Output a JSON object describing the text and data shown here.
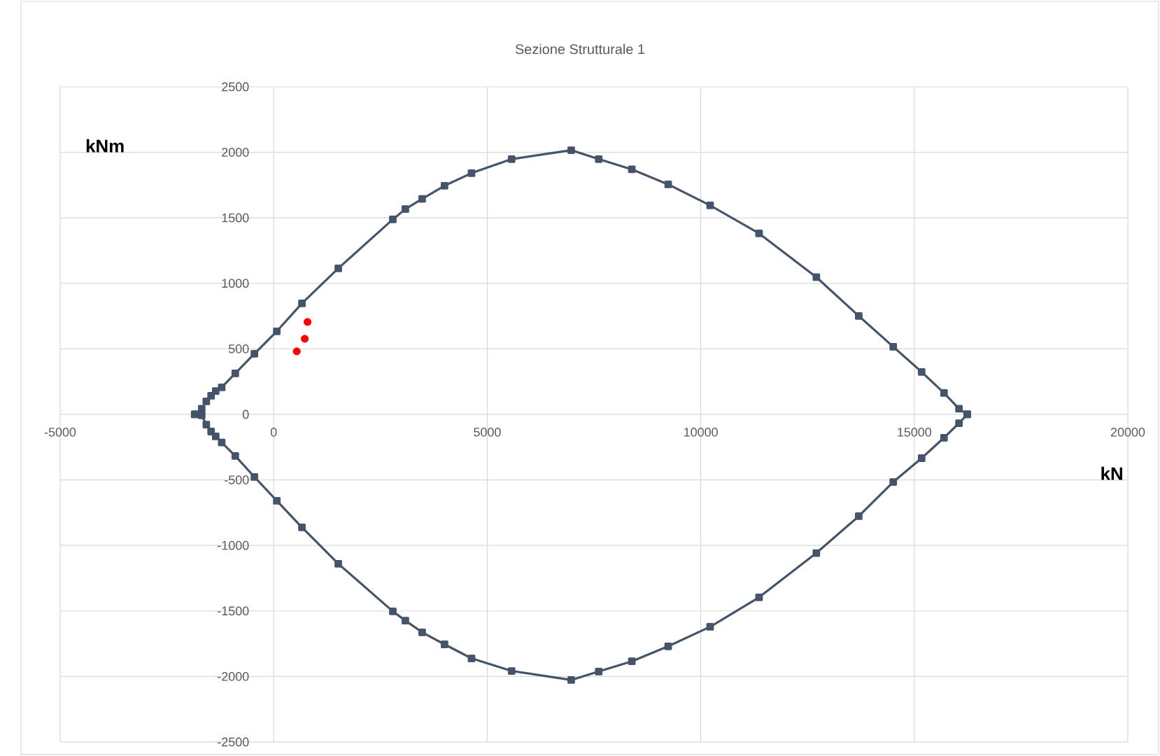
{
  "chart_data": {
    "type": "line",
    "title": "Sezione Strutturale 1",
    "xlabel": "kN",
    "ylabel": "kNm",
    "xlim": [
      -5000,
      20000
    ],
    "xticks": [
      -5000,
      0,
      5000,
      10000,
      15000,
      20000
    ],
    "ylim": [
      -2500,
      2500
    ],
    "yticks": [
      -2500,
      -2000,
      -1500,
      -1000,
      -500,
      0,
      500,
      1000,
      1500,
      2000,
      2500
    ],
    "grid": true,
    "legend": false,
    "series": [
      {
        "marker": "square",
        "color": "#44546a",
        "x": [
          -1850,
          -1686,
          -1578,
          -1466,
          -1358,
          -1218,
          -900,
          -452,
          72,
          661,
          1512,
          2789,
          3083,
          3476,
          4000,
          4632,
          5571,
          6966,
          7610,
          8386,
          9237,
          10219,
          11365,
          12707,
          13699,
          14507,
          15172,
          15696,
          16046,
          16242
        ],
        "values": [
          0,
          43,
          99,
          142,
          178,
          206,
          313,
          463,
          634,
          847,
          1114,
          1488,
          1567,
          1645,
          1745,
          1841,
          1948,
          2016,
          1948,
          1870,
          1755,
          1595,
          1381,
          1047,
          751,
          516,
          324,
          163,
          43,
          0
        ]
      },
      {
        "marker": "square",
        "color": "#44546a",
        "x": [
          -1850,
          -1686,
          -1578,
          -1466,
          -1358,
          -1218,
          -900,
          -452,
          72,
          661,
          1512,
          2789,
          3083,
          3476,
          4000,
          4632,
          5571,
          6966,
          7610,
          8386,
          9237,
          10219,
          11365,
          12707,
          13699,
          14507,
          15172,
          15696,
          16046,
          16242
        ],
        "values": [
          0,
          -7,
          -78,
          -131,
          -168,
          -214,
          -317,
          -477,
          -659,
          -862,
          -1140,
          -1503,
          -1574,
          -1663,
          -1755,
          -1862,
          -1958,
          -2027,
          -1962,
          -1884,
          -1770,
          -1621,
          -1396,
          -1058,
          -777,
          -516,
          -334,
          -178,
          -67,
          0
        ]
      },
      {
        "type": "scatter",
        "marker": "circle",
        "color": "#ff0000",
        "x": [
          540,
          727,
          792
        ],
        "values": [
          481,
          577,
          705
        ]
      }
    ]
  }
}
